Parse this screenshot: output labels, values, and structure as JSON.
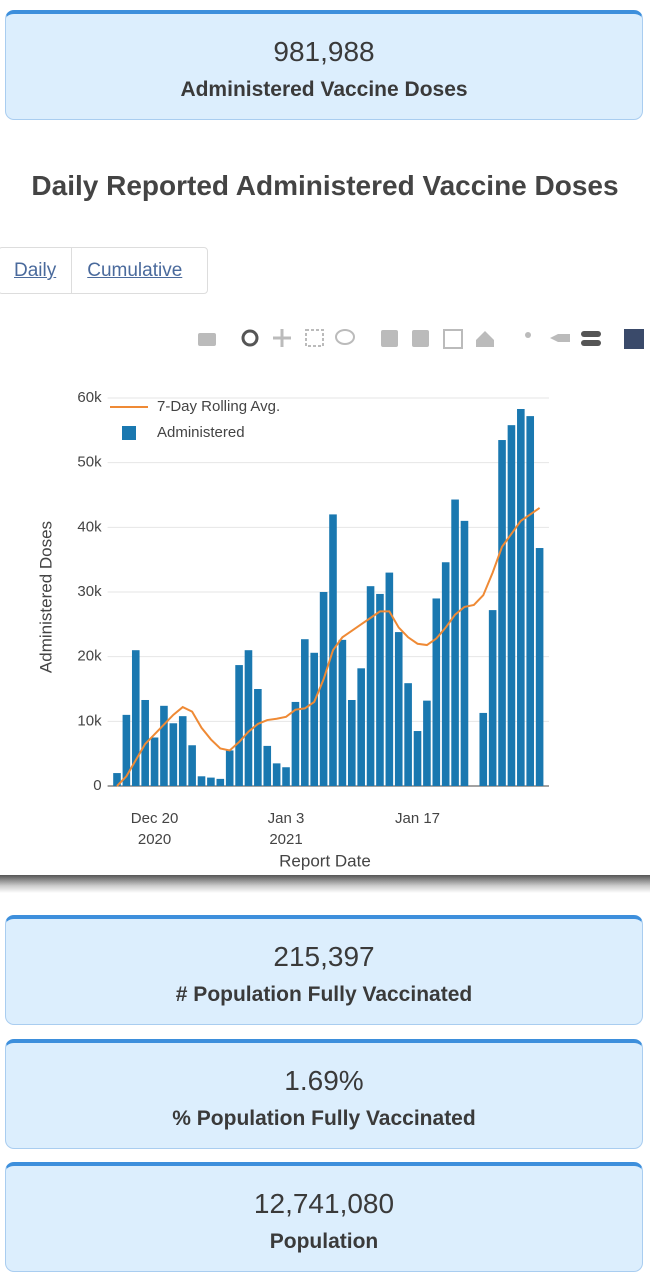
{
  "cards": [
    {
      "value": "981,988",
      "label": "Administered Vaccine Doses"
    },
    {
      "value": "215,397",
      "label": "# Population Fully Vaccinated"
    },
    {
      "value": "1.69%",
      "label": "% Population Fully Vaccinated"
    },
    {
      "value": "12,741,080",
      "label": "Population"
    }
  ],
  "heading": "Daily Reported Administered Vaccine Doses",
  "tabs": [
    "Daily",
    "Cumulative"
  ],
  "chart_data": {
    "type": "bar",
    "xlabel": "Report Date",
    "ylabel": "Administered Doses",
    "x": [
      "2020-12-16",
      "2020-12-17",
      "2020-12-18",
      "2020-12-19",
      "2020-12-20",
      "2020-12-21",
      "2020-12-22",
      "2020-12-23",
      "2020-12-24",
      "2020-12-25",
      "2020-12-26",
      "2020-12-27",
      "2020-12-28",
      "2020-12-29",
      "2020-12-30",
      "2020-12-31",
      "2021-01-01",
      "2021-01-02",
      "2021-01-03",
      "2021-01-04",
      "2021-01-05",
      "2021-01-06",
      "2021-01-07",
      "2021-01-08",
      "2021-01-09",
      "2021-01-10",
      "2021-01-11",
      "2021-01-12",
      "2021-01-13",
      "2021-01-14",
      "2021-01-15",
      "2021-01-16",
      "2021-01-17",
      "2021-01-18",
      "2021-01-19",
      "2021-01-20",
      "2021-01-21",
      "2021-01-22",
      "2021-01-23",
      "2021-01-24",
      "2021-01-25",
      "2021-01-26",
      "2021-01-27",
      "2021-01-28",
      "2021-01-29",
      "2021-01-30"
    ],
    "series": [
      {
        "name": "7-Day Rolling Avg.",
        "type": "line",
        "color": "#ef8a35",
        "values": [
          0,
          1500,
          4000,
          6500,
          8000,
          9500,
          11000,
          12200,
          11500,
          9000,
          7200,
          5800,
          5500,
          6800,
          8400,
          9600,
          10200,
          10400,
          10700,
          11800,
          12000,
          13000,
          16500,
          21000,
          23000,
          24000,
          25000,
          26000,
          27000,
          27000,
          24500,
          23000,
          22000,
          21800,
          22800,
          24500,
          26500,
          27700,
          28000,
          29500,
          33000,
          37000,
          39000,
          41000,
          42000,
          43000
        ]
      },
      {
        "name": "Administered",
        "type": "bar",
        "color": "#1a78b0",
        "values": [
          2000,
          11000,
          21000,
          13300,
          7500,
          12400,
          9700,
          10800,
          6300,
          1500,
          1300,
          1100,
          5500,
          18700,
          21000,
          15000,
          6200,
          3500,
          2900,
          13000,
          22700,
          20600,
          30000,
          42000,
          22600,
          13300,
          18200,
          30900,
          29700,
          33000,
          23800,
          15900,
          8500,
          13200,
          29000,
          34600,
          44300,
          41000,
          null,
          11300,
          27200,
          53500,
          55800,
          58300,
          57200,
          36800
        ]
      }
    ],
    "xlim": [
      "2020-12-15",
      "2021-01-31"
    ],
    "xticks": [
      {
        "value": "2020-12-20",
        "label": "Dec 20\n2020"
      },
      {
        "value": "2021-01-03",
        "label": "Jan 3\n2021"
      },
      {
        "value": "2021-01-17",
        "label": "Jan 17"
      }
    ],
    "ylim": [
      0,
      60000
    ],
    "yticks": [
      0,
      {
        "value": 10000,
        "label": "10k"
      },
      {
        "value": 20000,
        "label": "20k"
      },
      {
        "value": 30000,
        "label": "30k"
      },
      {
        "value": 40000,
        "label": "40k"
      },
      {
        "value": 50000,
        "label": "50k"
      },
      {
        "value": 60000,
        "label": "60k"
      }
    ],
    "grid": true,
    "legend": "top-left"
  }
}
